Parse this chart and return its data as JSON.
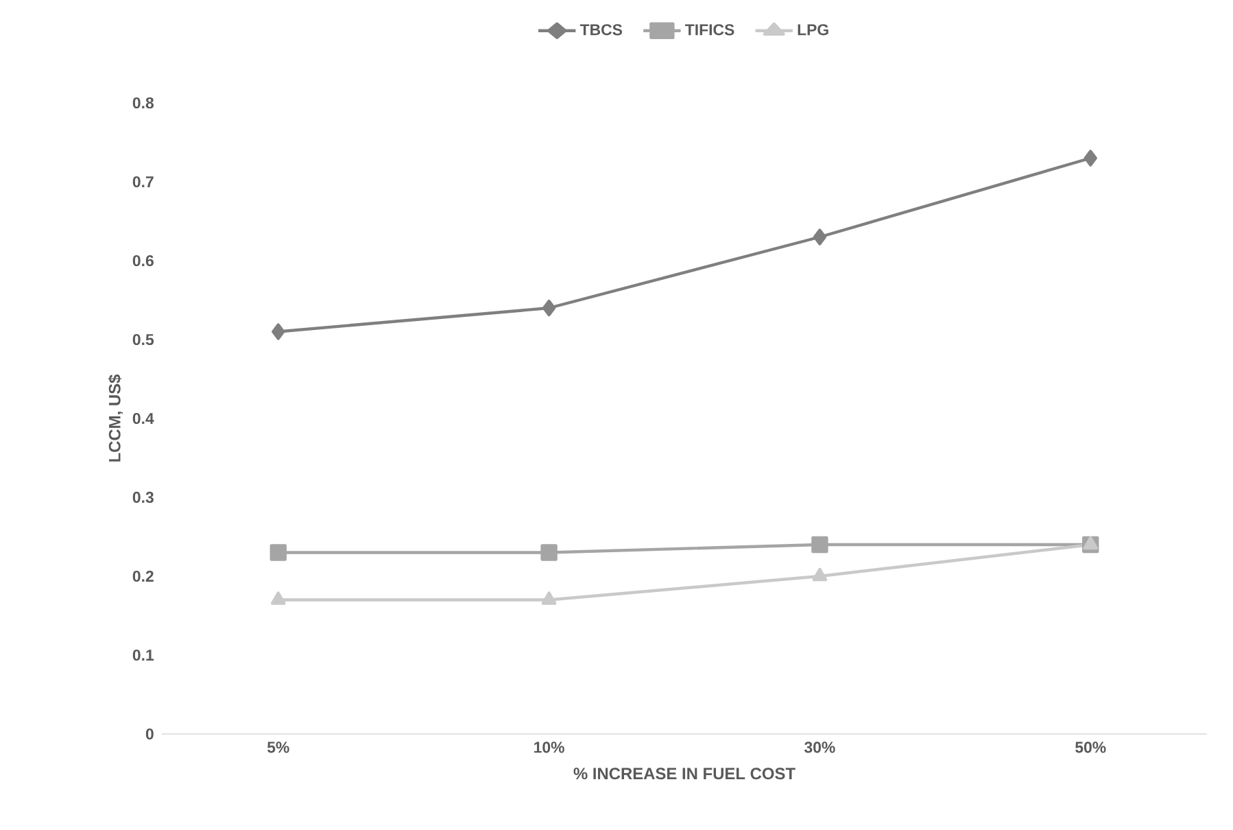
{
  "chart_data": {
    "type": "line",
    "xlabel": "% INCREASE IN FUEL COST",
    "ylabel": "LCCM, US$",
    "categories": [
      "5%",
      "10%",
      "30%",
      "50%"
    ],
    "series": [
      {
        "name": "TBCS",
        "color": "#7f7f7f",
        "marker": "diamond",
        "values": [
          0.51,
          0.54,
          0.63,
          0.73
        ]
      },
      {
        "name": "TIFICS",
        "color": "#a5a5a5",
        "marker": "square",
        "values": [
          0.23,
          0.23,
          0.24,
          0.24
        ]
      },
      {
        "name": "LPG",
        "color": "#c9c9c9",
        "marker": "triangle",
        "values": [
          0.17,
          0.17,
          0.2,
          0.24
        ]
      }
    ],
    "ylim": [
      0,
      0.8
    ],
    "yticks": [
      0,
      0.1,
      0.2,
      0.3,
      0.4,
      0.5,
      0.6,
      0.7,
      0.8
    ],
    "legend": "top",
    "grid": false,
    "line_style": "solid"
  }
}
